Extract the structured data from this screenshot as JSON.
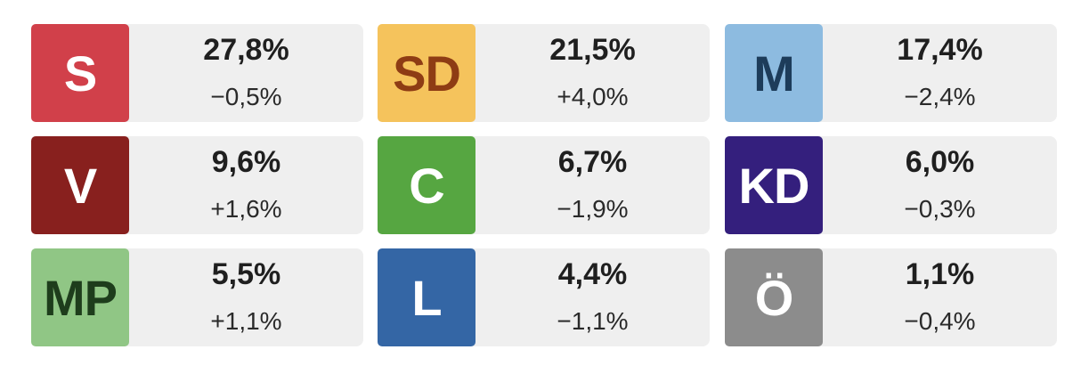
{
  "parties": [
    {
      "abbr": "S",
      "pct": "27,8%",
      "chg": "−0,5%",
      "bg": "#d1404a",
      "fg": "#ffffff"
    },
    {
      "abbr": "SD",
      "pct": "21,5%",
      "chg": "+4,0%",
      "bg": "#f5c35c",
      "fg": "#8e3c14"
    },
    {
      "abbr": "M",
      "pct": "17,4%",
      "chg": "−2,4%",
      "bg": "#8dbbe0",
      "fg": "#1d3c5a"
    },
    {
      "abbr": "V",
      "pct": "9,6%",
      "chg": "+1,6%",
      "bg": "#88201e",
      "fg": "#ffffff"
    },
    {
      "abbr": "C",
      "pct": "6,7%",
      "chg": "−1,9%",
      "bg": "#56a641",
      "fg": "#ffffff"
    },
    {
      "abbr": "KD",
      "pct": "6,0%",
      "chg": "−0,3%",
      "bg": "#341f7d",
      "fg": "#ffffff"
    },
    {
      "abbr": "MP",
      "pct": "5,5%",
      "chg": "+1,1%",
      "bg": "#90c685",
      "fg": "#1e3d1c"
    },
    {
      "abbr": "L",
      "pct": "4,4%",
      "chg": "−1,1%",
      "bg": "#3466a5",
      "fg": "#ffffff"
    },
    {
      "abbr": "Ö",
      "pct": "1,1%",
      "chg": "−0,4%",
      "bg": "#8c8c8c",
      "fg": "#ffffff"
    }
  ]
}
